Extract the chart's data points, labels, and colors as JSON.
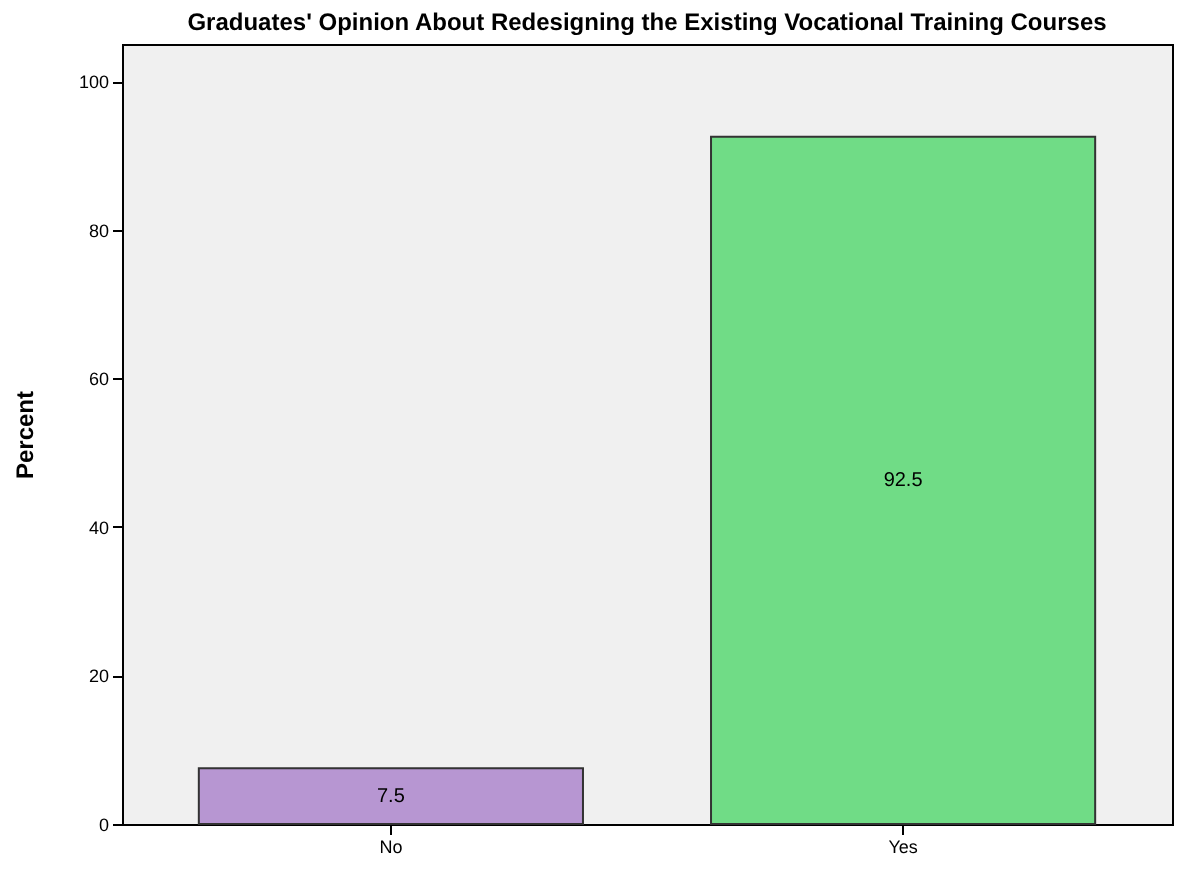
{
  "chart_data": {
    "type": "bar",
    "title": "Graduates' Opinion About Redesigning the Existing Vocational Training Courses",
    "ylabel": "Percent",
    "categories": [
      "No",
      "Yes"
    ],
    "values": [
      7.5,
      92.5
    ],
    "colors": [
      "#b796d2",
      "#70dc86"
    ],
    "ylim": [
      0,
      105
    ],
    "yticks": [
      0,
      20,
      40,
      60,
      80,
      100
    ],
    "data_labels": true,
    "grid": false
  }
}
